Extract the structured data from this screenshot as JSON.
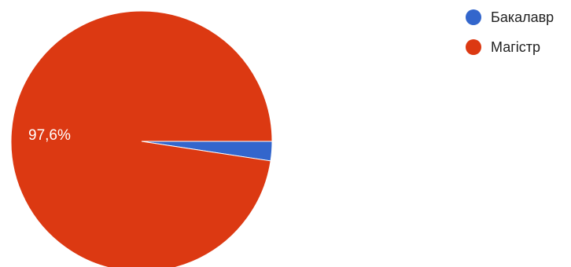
{
  "chart_data": {
    "type": "pie",
    "slices": [
      {
        "label": "Бакалавр",
        "value": 2.4,
        "color": "#3366cc",
        "data_label": ""
      },
      {
        "label": "Магістр",
        "value": 97.6,
        "color": "#dc3912",
        "data_label": "97,6%"
      }
    ],
    "legend_position": "top-right"
  }
}
